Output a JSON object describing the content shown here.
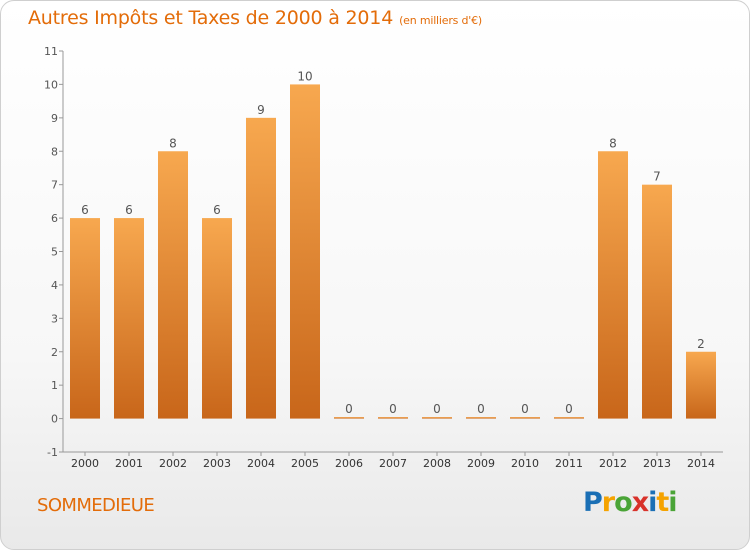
{
  "header": {
    "title": "Autres Impôts et Taxes de 2000 à 2014",
    "unit": "(en milliers d'€)"
  },
  "footer": {
    "commune": "SOMMEDIEUE",
    "brand": [
      "P",
      "r",
      "o",
      "x",
      "i",
      "t",
      "i"
    ],
    "brand_colors": [
      "#1a6fb5",
      "#f5a300",
      "#4aa437",
      "#d8322a",
      "#1a6fb5",
      "#f5a300",
      "#4aa437"
    ]
  },
  "chart_data": {
    "type": "bar",
    "title": "Autres Impôts et Taxes de 2000 à 2014",
    "subtitle": "(en milliers d'€)",
    "xlabel": "",
    "ylabel": "",
    "categories": [
      "2000",
      "2001",
      "2002",
      "2003",
      "2004",
      "2005",
      "2006",
      "2007",
      "2008",
      "2009",
      "2010",
      "2011",
      "2012",
      "2013",
      "2014"
    ],
    "values": [
      6,
      6,
      8,
      6,
      9,
      10,
      0,
      0,
      0,
      0,
      0,
      0,
      8,
      7,
      2
    ],
    "data_labels": [
      "6",
      "6",
      "8",
      "6",
      "9",
      "10",
      "0",
      "0",
      "0",
      "0",
      "0",
      "0",
      "8",
      "7",
      "2"
    ],
    "ylim": [
      -1,
      11
    ],
    "yticks": [
      -1,
      0,
      1,
      2,
      3,
      4,
      5,
      6,
      7,
      8,
      9,
      10,
      11
    ],
    "ytick_labels": [
      "-1",
      "0",
      "1",
      "2",
      "3",
      "4",
      "5",
      "6",
      "7",
      "8",
      "9",
      "10",
      "11"
    ],
    "bar_color_top": "#f7a84f",
    "bar_color_bottom": "#c8661a",
    "grid": false
  }
}
